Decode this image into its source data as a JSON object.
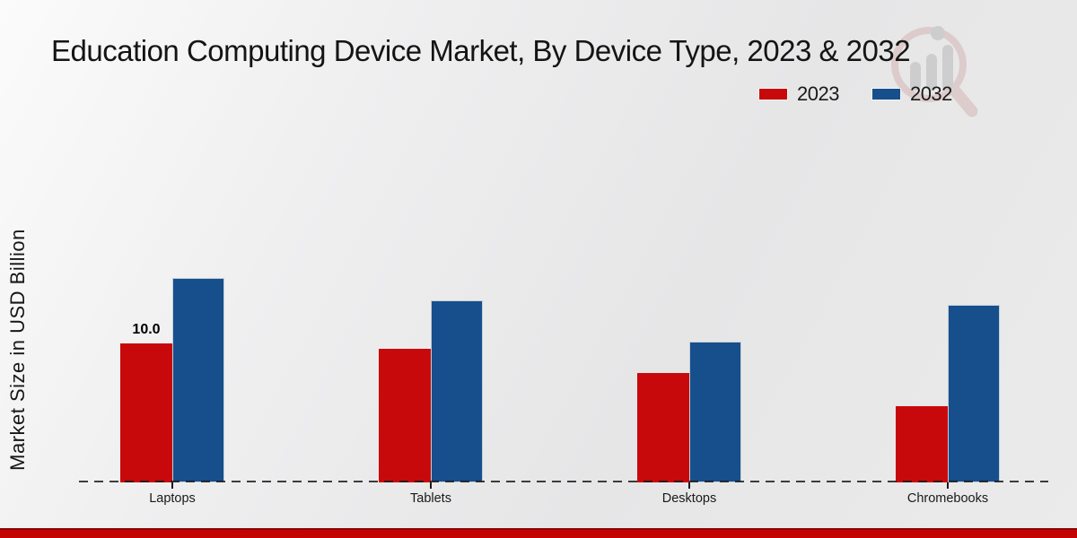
{
  "chart_data": {
    "type": "bar",
    "title": "Education Computing Device Market, By Device Type, 2023 & 2032",
    "ylabel": "Market Size in USD Billion",
    "xlabel": "",
    "categories": [
      "Laptops",
      "Tablets",
      "Desktops",
      "Chromebooks"
    ],
    "series": [
      {
        "name": "2023",
        "color": "#c8090b",
        "values": [
          10.0,
          9.6,
          7.9,
          5.5
        ]
      },
      {
        "name": "2032",
        "color": "#164f8c",
        "values": [
          14.7,
          13.1,
          10.1,
          12.8
        ]
      }
    ],
    "value_labels": [
      {
        "series": "2023",
        "category": "Laptops",
        "text": "10.0"
      }
    ],
    "ylim": [
      0,
      16
    ],
    "grid": false,
    "legend_position": "top-right",
    "baseline_style": "dashed"
  },
  "icons": {
    "watermark": "magnifier-bar-chart-watermark"
  },
  "colors": {
    "footer_bar": "#c40404",
    "axis_line": "#1a1a1a",
    "background": "#ebebeb"
  }
}
